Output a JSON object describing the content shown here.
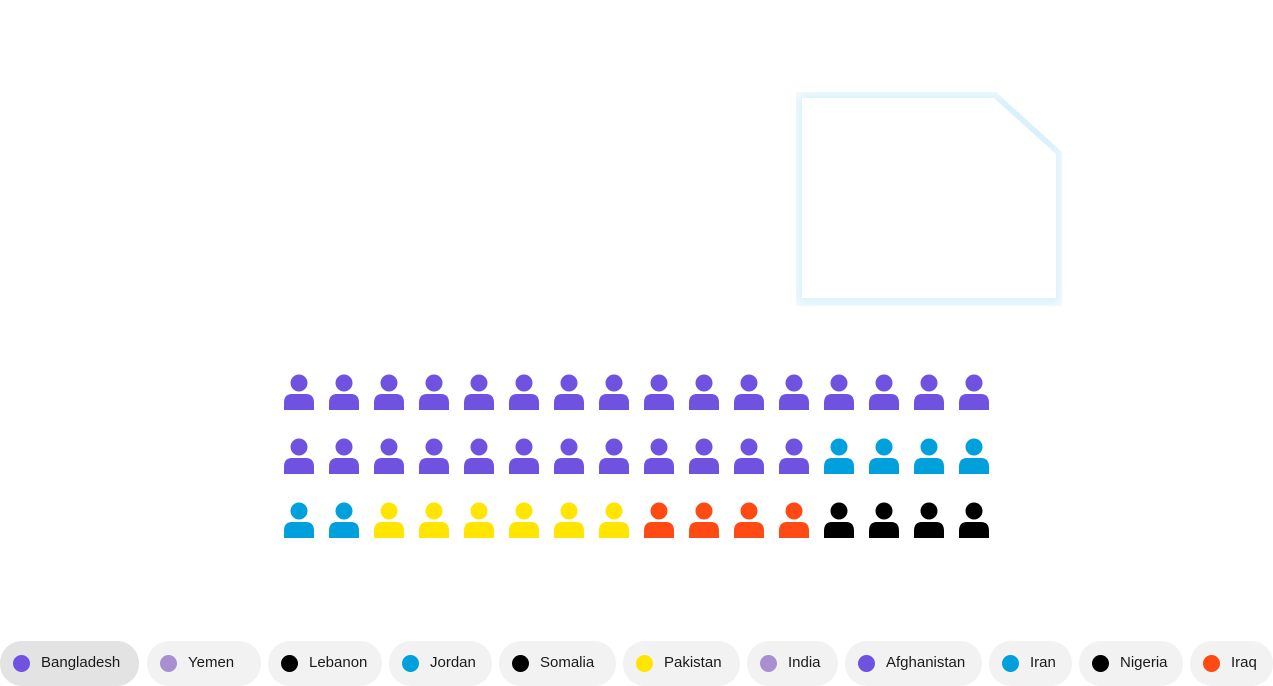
{
  "chart_data": {
    "type": "pictogram",
    "icon": "person-icon",
    "rows": [
      [
        "Bangladesh",
        "Bangladesh",
        "Bangladesh",
        "Bangladesh",
        "Bangladesh",
        "Bangladesh",
        "Bangladesh",
        "Bangladesh",
        "Bangladesh",
        "Bangladesh",
        "Bangladesh",
        "Bangladesh",
        "Bangladesh",
        "Bangladesh",
        "Bangladesh",
        "Bangladesh"
      ],
      [
        "Bangladesh",
        "Bangladesh",
        "Bangladesh",
        "Bangladesh",
        "Bangladesh",
        "Bangladesh",
        "Bangladesh",
        "Bangladesh",
        "Bangladesh",
        "Bangladesh",
        "Bangladesh",
        "Bangladesh",
        "Jordan",
        "Jordan",
        "Jordan",
        "Jordan"
      ],
      [
        "Jordan",
        "Jordan",
        "Pakistan",
        "Pakistan",
        "Pakistan",
        "Pakistan",
        "Pakistan",
        "Pakistan",
        "Iraq",
        "Iraq",
        "Iraq",
        "Iraq",
        "Somalia",
        "Somalia",
        "Somalia",
        "Somalia"
      ]
    ],
    "counts": {
      "Bangladesh": 28,
      "Jordan": 6,
      "Pakistan": 6,
      "Iraq": 4,
      "Somalia": 4
    }
  },
  "legend": [
    {
      "label": "Bangladesh",
      "color": "#7052e0",
      "active": true
    },
    {
      "label": "Yemen",
      "color": "#a98fd0",
      "active": false
    },
    {
      "label": "Lebanon",
      "color": "#000000",
      "active": false
    },
    {
      "label": "Jordan",
      "color": "#00a0dd",
      "active": false
    },
    {
      "label": "Somalia",
      "color": "#000000",
      "active": false
    },
    {
      "label": "Pakistan",
      "color": "#ffe500",
      "active": false
    },
    {
      "label": "India",
      "color": "#a98fd0",
      "active": false
    },
    {
      "label": "Afghanistan",
      "color": "#7052e0",
      "active": false
    },
    {
      "label": "Iran",
      "color": "#00a0dd",
      "active": false
    },
    {
      "label": "Nigeria",
      "color": "#000000",
      "active": false
    },
    {
      "label": "Iraq",
      "color": "#ff4a13",
      "active": false
    }
  ]
}
